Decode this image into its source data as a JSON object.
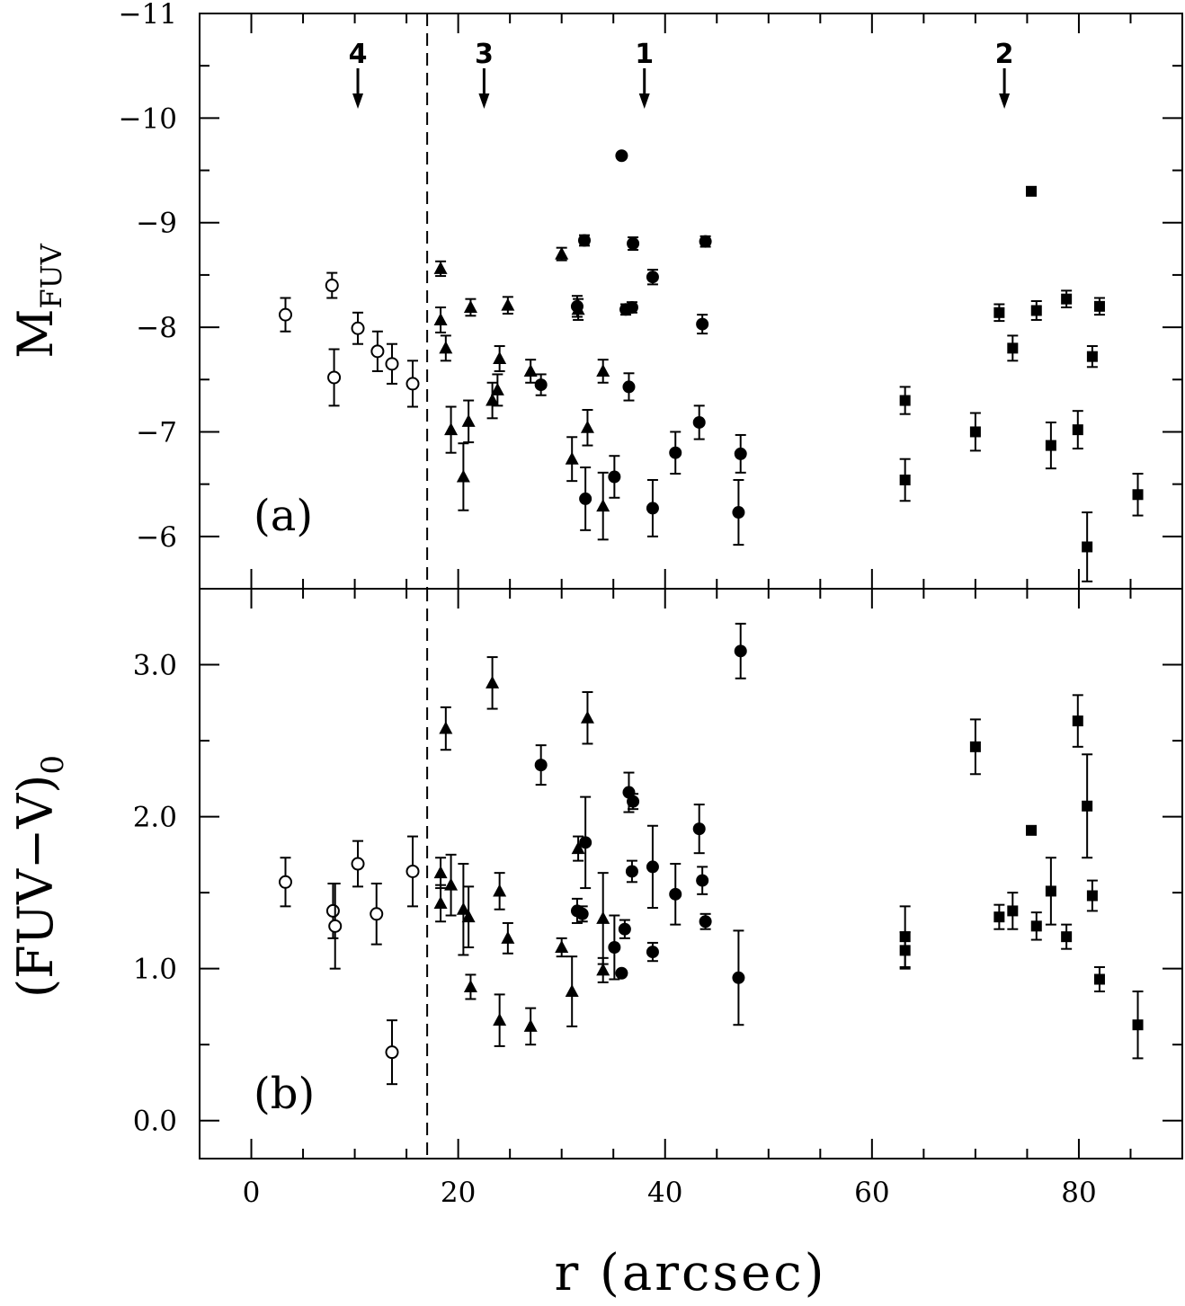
{
  "chart_data": [
    {
      "panel": "a",
      "type": "scatter",
      "panel_label": "(a)",
      "ylabel_main": "M",
      "ylabel_sub": "FUV",
      "ylim": [
        -5.5,
        -11
      ],
      "yticks": [
        "-11",
        "-10",
        "-9",
        "-8",
        "-7",
        "-6"
      ],
      "region_markers": [
        {
          "label": "4",
          "x": 10.3
        },
        {
          "label": "3",
          "x": 22.5
        },
        {
          "label": "1",
          "x": 38.0
        },
        {
          "label": "2",
          "x": 72.8
        }
      ],
      "series": [
        {
          "name": "open circles",
          "marker": "open-circle",
          "points": [
            {
              "x": 3.3,
              "y": -8.12,
              "err": 0.16
            },
            {
              "x": 7.8,
              "y": -8.4,
              "err": 0.12
            },
            {
              "x": 8.0,
              "y": -7.52,
              "err": 0.27
            },
            {
              "x": 10.3,
              "y": -7.99,
              "err": 0.15
            },
            {
              "x": 12.2,
              "y": -7.77,
              "err": 0.19
            },
            {
              "x": 13.6,
              "y": -7.65,
              "err": 0.19
            },
            {
              "x": 15.6,
              "y": -7.46,
              "err": 0.22
            }
          ]
        },
        {
          "name": "triangles",
          "marker": "filled-triangle",
          "points": [
            {
              "x": 18.3,
              "y": -8.56,
              "err": 0.07
            },
            {
              "x": 18.3,
              "y": -8.07,
              "err": 0.12
            },
            {
              "x": 18.8,
              "y": -7.8,
              "err": 0.12
            },
            {
              "x": 19.3,
              "y": -7.02,
              "err": 0.22
            },
            {
              "x": 20.5,
              "y": -6.57,
              "err": 0.32
            },
            {
              "x": 21.0,
              "y": -7.1,
              "err": 0.2
            },
            {
              "x": 21.2,
              "y": -8.19,
              "err": 0.08
            },
            {
              "x": 23.3,
              "y": -7.3,
              "err": 0.17
            },
            {
              "x": 23.8,
              "y": -7.4,
              "err": 0.15
            },
            {
              "x": 24.0,
              "y": -7.7,
              "err": 0.12
            },
            {
              "x": 24.8,
              "y": -8.21,
              "err": 0.08
            },
            {
              "x": 27.0,
              "y": -7.58,
              "err": 0.11
            },
            {
              "x": 30.0,
              "y": -8.7,
              "err": 0.06
            },
            {
              "x": 31.0,
              "y": -6.74,
              "err": 0.21
            },
            {
              "x": 31.6,
              "y": -8.17,
              "err": 0.1
            },
            {
              "x": 32.5,
              "y": -7.04,
              "err": 0.17
            },
            {
              "x": 34.0,
              "y": -6.29,
              "err": 0.32
            },
            {
              "x": 34.0,
              "y": -7.58,
              "err": 0.11
            }
          ]
        },
        {
          "name": "filled circles",
          "marker": "filled-circle",
          "points": [
            {
              "x": 28.0,
              "y": -7.45,
              "err": 0.1
            },
            {
              "x": 31.5,
              "y": -8.2,
              "err": 0.1
            },
            {
              "x": 32.2,
              "y": -8.83,
              "err": 0.05
            },
            {
              "x": 32.3,
              "y": -6.36,
              "err": 0.3
            },
            {
              "x": 35.1,
              "y": -6.57,
              "err": 0.2
            },
            {
              "x": 35.8,
              "y": -9.64,
              "err": 0.0
            },
            {
              "x": 36.2,
              "y": -8.17,
              "err": 0.05
            },
            {
              "x": 36.5,
              "y": -7.43,
              "err": 0.13
            },
            {
              "x": 36.8,
              "y": -8.19,
              "err": 0.05
            },
            {
              "x": 36.9,
              "y": -8.8,
              "err": 0.06
            },
            {
              "x": 38.8,
              "y": -8.48,
              "err": 0.07
            },
            {
              "x": 38.8,
              "y": -6.27,
              "err": 0.27
            },
            {
              "x": 41.0,
              "y": -6.8,
              "err": 0.2
            },
            {
              "x": 43.3,
              "y": -7.09,
              "err": 0.16
            },
            {
              "x": 43.6,
              "y": -8.03,
              "err": 0.09
            },
            {
              "x": 43.9,
              "y": -8.82,
              "err": 0.05
            },
            {
              "x": 47.1,
              "y": -6.23,
              "err": 0.31
            },
            {
              "x": 47.3,
              "y": -6.79,
              "err": 0.18
            }
          ]
        },
        {
          "name": "squares",
          "marker": "filled-square",
          "points": [
            {
              "x": 63.2,
              "y": -7.3,
              "err": 0.13
            },
            {
              "x": 63.2,
              "y": -6.54,
              "err": 0.2
            },
            {
              "x": 70.0,
              "y": -7.0,
              "err": 0.18
            },
            {
              "x": 72.3,
              "y": -8.14,
              "err": 0.08
            },
            {
              "x": 73.6,
              "y": -7.8,
              "err": 0.12
            },
            {
              "x": 75.4,
              "y": -9.3,
              "err": 0.0
            },
            {
              "x": 75.9,
              "y": -8.16,
              "err": 0.09
            },
            {
              "x": 77.3,
              "y": -6.87,
              "err": 0.22
            },
            {
              "x": 78.8,
              "y": -8.27,
              "err": 0.08
            },
            {
              "x": 79.9,
              "y": -7.02,
              "err": 0.18
            },
            {
              "x": 80.8,
              "y": -5.9,
              "err": 0.33
            },
            {
              "x": 81.3,
              "y": -7.72,
              "err": 0.1
            },
            {
              "x": 82.0,
              "y": -8.2,
              "err": 0.08
            },
            {
              "x": 85.7,
              "y": -6.4,
              "err": 0.2
            }
          ]
        }
      ]
    },
    {
      "panel": "b",
      "type": "scatter",
      "panel_label": "(b)",
      "ylabel": "(FUV−V)",
      "ylabel_sub": "0",
      "ylim": [
        -0.25,
        3.5
      ],
      "yticks": [
        "0.0",
        "1.0",
        "2.0",
        "3.0"
      ],
      "xlabel": "r (arcsec)",
      "xlim": [
        -5,
        90
      ],
      "xticks": [
        "0",
        "20",
        "40",
        "60",
        "80"
      ],
      "series": [
        {
          "name": "open circles",
          "marker": "open-circle",
          "points": [
            {
              "x": 3.3,
              "y": 1.57,
              "err": 0.16
            },
            {
              "x": 7.9,
              "y": 1.38,
              "err": 0.18
            },
            {
              "x": 8.1,
              "y": 1.28,
              "err": 0.28
            },
            {
              "x": 10.3,
              "y": 1.69,
              "err": 0.15
            },
            {
              "x": 12.1,
              "y": 1.36,
              "err": 0.2
            },
            {
              "x": 13.6,
              "y": 0.45,
              "err": 0.21
            },
            {
              "x": 15.6,
              "y": 1.64,
              "err": 0.23
            }
          ]
        },
        {
          "name": "triangles",
          "marker": "filled-triangle",
          "points": [
            {
              "x": 18.3,
              "y": 1.63,
              "err": 0.1
            },
            {
              "x": 18.3,
              "y": 1.43,
              "err": 0.12
            },
            {
              "x": 18.8,
              "y": 2.58,
              "err": 0.14
            },
            {
              "x": 19.3,
              "y": 1.55,
              "err": 0.2
            },
            {
              "x": 20.5,
              "y": 1.39,
              "err": 0.3
            },
            {
              "x": 21.0,
              "y": 1.34,
              "err": 0.2
            },
            {
              "x": 21.2,
              "y": 0.88,
              "err": 0.08
            },
            {
              "x": 23.3,
              "y": 2.88,
              "err": 0.17
            },
            {
              "x": 24.0,
              "y": 1.51,
              "err": 0.12
            },
            {
              "x": 24.0,
              "y": 0.66,
              "err": 0.17
            },
            {
              "x": 24.8,
              "y": 1.2,
              "err": 0.1
            },
            {
              "x": 27.0,
              "y": 0.62,
              "err": 0.12
            },
            {
              "x": 30.0,
              "y": 1.14,
              "err": 0.06
            },
            {
              "x": 31.0,
              "y": 0.85,
              "err": 0.23
            },
            {
              "x": 31.6,
              "y": 1.79,
              "err": 0.08
            },
            {
              "x": 32.5,
              "y": 2.65,
              "err": 0.17
            },
            {
              "x": 34.0,
              "y": 1.33,
              "err": 0.3
            },
            {
              "x": 34.0,
              "y": 0.99,
              "err": 0.08
            }
          ]
        },
        {
          "name": "filled circles",
          "marker": "filled-circle",
          "points": [
            {
              "x": 28.0,
              "y": 2.34,
              "err": 0.13
            },
            {
              "x": 31.5,
              "y": 1.38,
              "err": 0.08
            },
            {
              "x": 32.0,
              "y": 1.36,
              "err": 0.05
            },
            {
              "x": 32.3,
              "y": 1.83,
              "err": 0.3
            },
            {
              "x": 35.1,
              "y": 1.14,
              "err": 0.21
            },
            {
              "x": 35.8,
              "y": 0.97,
              "err": 0.0
            },
            {
              "x": 36.1,
              "y": 1.26,
              "err": 0.06
            },
            {
              "x": 36.5,
              "y": 2.16,
              "err": 0.13
            },
            {
              "x": 36.8,
              "y": 1.64,
              "err": 0.07
            },
            {
              "x": 36.9,
              "y": 2.1,
              "err": 0.05
            },
            {
              "x": 38.8,
              "y": 1.67,
              "err": 0.27
            },
            {
              "x": 38.8,
              "y": 1.11,
              "err": 0.06
            },
            {
              "x": 41.0,
              "y": 1.49,
              "err": 0.2
            },
            {
              "x": 43.3,
              "y": 1.92,
              "err": 0.16
            },
            {
              "x": 43.6,
              "y": 1.58,
              "err": 0.09
            },
            {
              "x": 43.9,
              "y": 1.31,
              "err": 0.05
            },
            {
              "x": 47.1,
              "y": 0.94,
              "err": 0.31
            },
            {
              "x": 47.3,
              "y": 3.09,
              "err": 0.18
            }
          ]
        },
        {
          "name": "squares",
          "marker": "filled-square",
          "points": [
            {
              "x": 63.2,
              "y": 1.21,
              "err": 0.2
            },
            {
              "x": 63.2,
              "y": 1.12,
              "err": 0.12
            },
            {
              "x": 70.0,
              "y": 2.46,
              "err": 0.18
            },
            {
              "x": 72.3,
              "y": 1.34,
              "err": 0.08
            },
            {
              "x": 73.6,
              "y": 1.38,
              "err": 0.12
            },
            {
              "x": 75.4,
              "y": 1.91,
              "err": 0.0
            },
            {
              "x": 75.9,
              "y": 1.28,
              "err": 0.09
            },
            {
              "x": 77.3,
              "y": 1.51,
              "err": 0.22
            },
            {
              "x": 78.8,
              "y": 1.21,
              "err": 0.08
            },
            {
              "x": 79.9,
              "y": 2.63,
              "err": 0.17
            },
            {
              "x": 80.8,
              "y": 2.07,
              "err": 0.34
            },
            {
              "x": 81.3,
              "y": 1.48,
              "err": 0.1
            },
            {
              "x": 82.0,
              "y": 0.93,
              "err": 0.08
            },
            {
              "x": 85.7,
              "y": 0.63,
              "err": 0.22
            }
          ]
        }
      ]
    }
  ],
  "divider_x": 17.0
}
